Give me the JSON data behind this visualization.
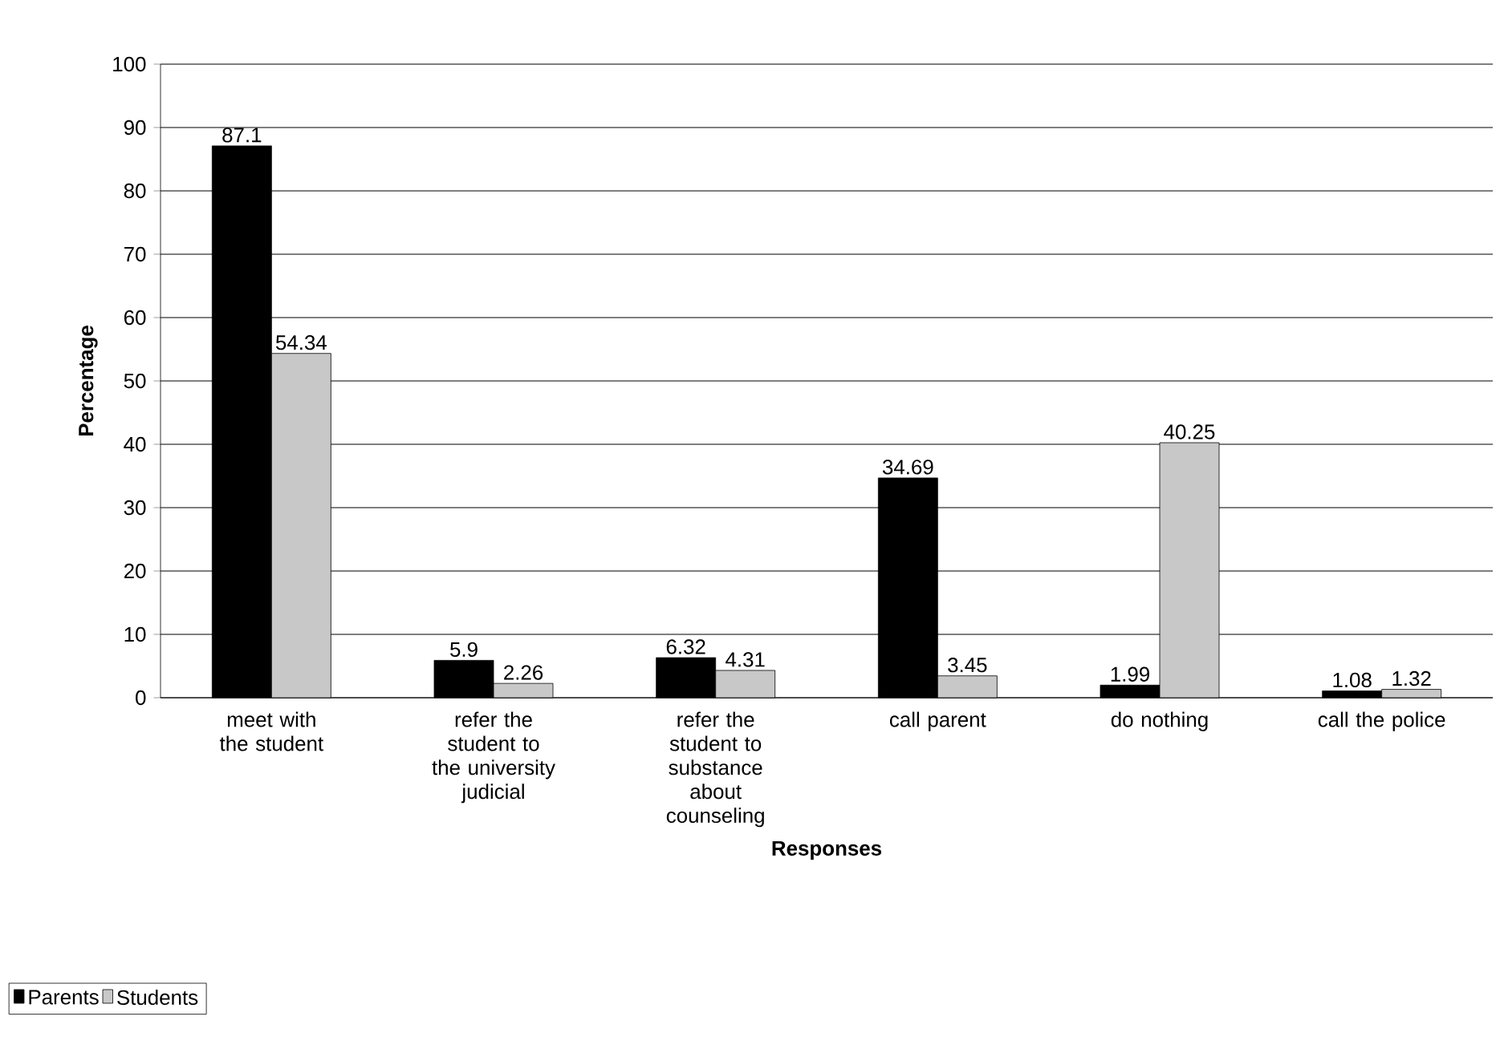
{
  "chart_data": {
    "type": "bar",
    "xlabel": "Responses",
    "ylabel": "Percentage",
    "categories": [
      "meet with the student",
      "refer the student to the university judicial",
      "refer the student to substance about counseling",
      "call parent",
      "do nothing",
      "call the police"
    ],
    "series": [
      {
        "name": "Parents",
        "color": "#000000",
        "values": [
          87.1,
          5.9,
          6.32,
          34.69,
          1.99,
          1.08
        ]
      },
      {
        "name": "Students",
        "color": "#c8c8c8",
        "values": [
          54.34,
          2.26,
          4.31,
          3.45,
          40.25,
          1.32
        ]
      }
    ],
    "ylim": [
      0,
      100
    ],
    "yticks": [
      0,
      10,
      20,
      30,
      40,
      50,
      60,
      70,
      80,
      90,
      100
    ],
    "grid": "y",
    "legend": "bottom left",
    "data_labels": true
  }
}
